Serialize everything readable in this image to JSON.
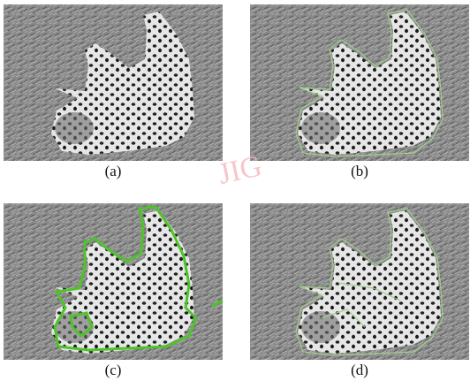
{
  "panels": [
    {
      "caption": "(a)"
    },
    {
      "caption": "(b)"
    },
    {
      "caption": "(c)"
    },
    {
      "caption": "(d)"
    }
  ],
  "watermark": "JIG"
}
